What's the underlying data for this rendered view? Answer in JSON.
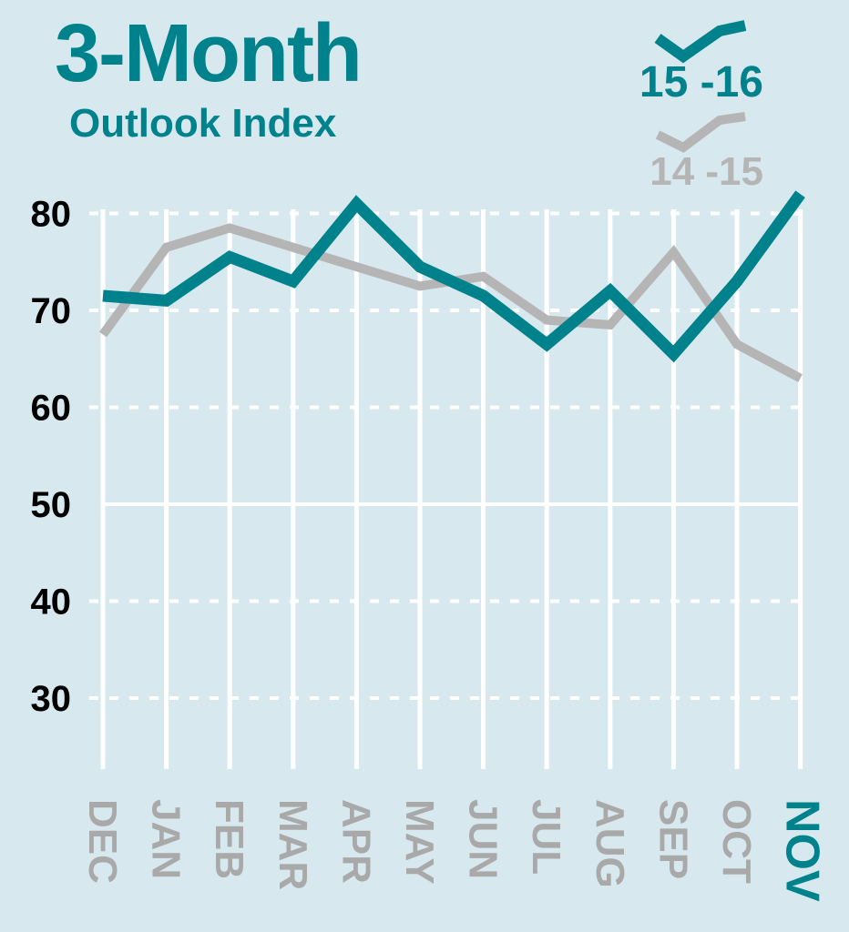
{
  "title": "3-Month",
  "subtitle": "Outlook Index",
  "colors": {
    "background": "#d7e9ef",
    "current": "#00828c",
    "previous": "#b5b5b5",
    "grid": "#ffffff",
    "axis_text": "#000000",
    "month_text": "#a9a9a9"
  },
  "chart_data": {
    "type": "line",
    "title": "3-Month Outlook Index",
    "xlabel": "",
    "ylabel": "",
    "categories": [
      "DEC",
      "JAN",
      "FEB",
      "MAR",
      "APR",
      "MAY",
      "JUN",
      "JUL",
      "AUG",
      "SEP",
      "OCT",
      "NOV"
    ],
    "highlight_category": "NOV",
    "ylim": [
      25,
      82
    ],
    "yticks": [
      30,
      40,
      50,
      60,
      70,
      80
    ],
    "grid": true,
    "legend_position": "top-right",
    "series": [
      {
        "name": "15-16",
        "label": "15 -16",
        "color": "#00828c",
        "values": [
          71.5,
          71,
          75.5,
          73,
          81,
          74.5,
          71.5,
          66.5,
          72,
          65.5,
          73,
          82
        ]
      },
      {
        "name": "14-15",
        "label": "14 -15",
        "color": "#b5b5b5",
        "values": [
          67.5,
          76.5,
          78.5,
          76.5,
          74.5,
          72.5,
          73.5,
          69,
          68.5,
          76,
          66.5,
          63
        ]
      }
    ]
  }
}
